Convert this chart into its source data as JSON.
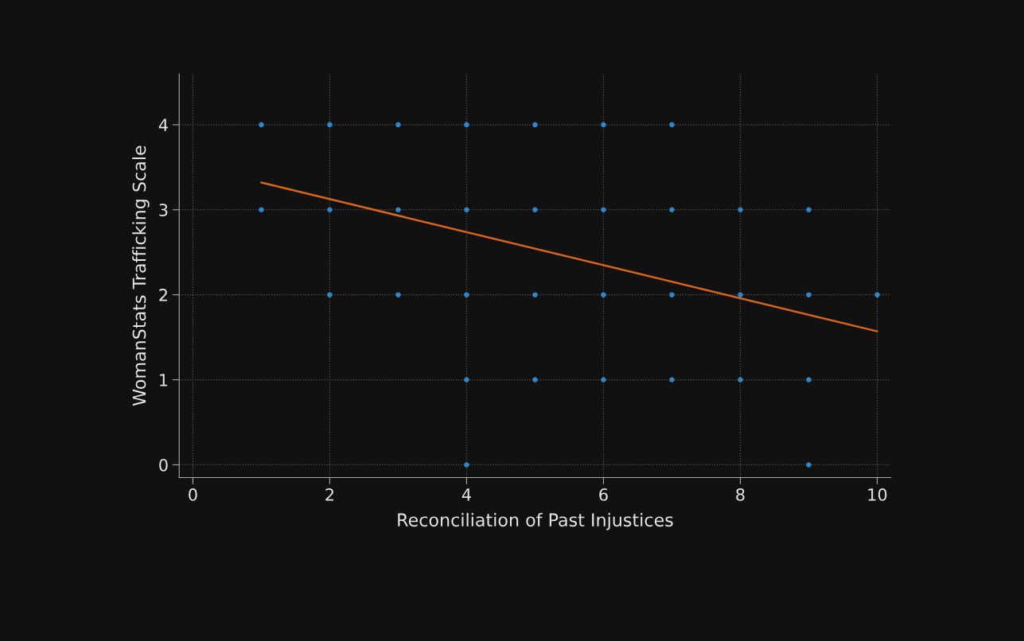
{
  "chart_data": {
    "type": "scatter",
    "xlabel": "Reconciliation of Past Injustices",
    "ylabel": "WomanStats Trafficking Scale",
    "xlim": [
      -0.2,
      10.2
    ],
    "ylim": [
      -0.15,
      4.6
    ],
    "xticks": [
      0,
      2,
      4,
      6,
      8,
      10
    ],
    "yticks": [
      0,
      1,
      2,
      3,
      4
    ],
    "grid": true,
    "series": [
      {
        "marker": "circle",
        "color": "#2f86c8",
        "x": [
          1,
          2,
          3,
          4,
          5,
          6,
          7,
          1,
          2,
          3,
          4,
          5,
          6,
          7,
          8,
          9,
          2,
          3,
          4,
          5,
          6,
          7,
          8,
          9,
          10,
          4,
          5,
          6,
          7,
          8,
          9,
          4,
          9
        ],
        "values": [
          4,
          4,
          4,
          4,
          4,
          4,
          4,
          3,
          3,
          3,
          3,
          3,
          3,
          3,
          3,
          3,
          2,
          2,
          2,
          2,
          2,
          2,
          2,
          2,
          2,
          1,
          1,
          1,
          1,
          1,
          1,
          0,
          0
        ]
      },
      {
        "type": "line",
        "color": "#d9661c",
        "marker": "none",
        "x": [
          1,
          10
        ],
        "values": [
          3.32,
          1.57
        ]
      }
    ]
  }
}
